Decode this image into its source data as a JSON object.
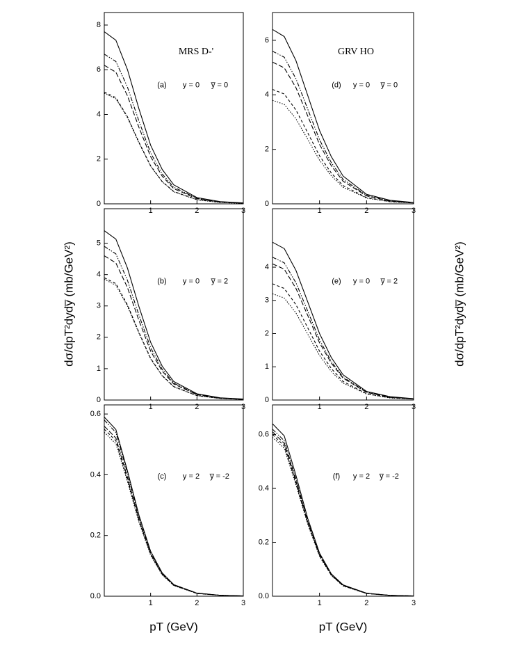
{
  "chart_data": [
    {
      "type": "line",
      "title": "MRS D-'",
      "panel_label": "(a)",
      "condition_y": "y = 0",
      "condition_ybar": "y̅ = 0",
      "x": [
        0,
        0.25,
        0.5,
        0.75,
        1,
        1.25,
        1.5,
        2,
        2.5,
        3
      ],
      "xlim": [
        0,
        3
      ],
      "xticks": [
        1,
        2,
        3
      ],
      "ylim": [
        0,
        8.56
      ],
      "yticks": [
        0,
        2,
        4,
        6,
        8
      ],
      "series": [
        {
          "color": "#000000",
          "dash": "solid",
          "values": [
            7.7,
            7.32,
            6.01,
            4.24,
            2.62,
            1.54,
            0.85,
            0.28,
            0.1,
            0.04
          ]
        },
        {
          "color": "#000000",
          "dash": "dashdot",
          "values": [
            6.7,
            6.37,
            5.23,
            3.69,
            2.28,
            1.34,
            0.74,
            0.25,
            0.09,
            0.03
          ]
        },
        {
          "color": "#000000",
          "dash": "dash",
          "values": [
            6.2,
            5.89,
            4.84,
            3.41,
            2.11,
            1.24,
            0.68,
            0.23,
            0.08,
            0.03
          ]
        },
        {
          "color": "#000000",
          "dash": "shortdash",
          "values": [
            5.0,
            4.75,
            3.9,
            2.75,
            1.7,
            1.0,
            0.55,
            0.19,
            0.07,
            0.03
          ]
        },
        {
          "color": "#000000",
          "dash": "dot",
          "values": [
            4.95,
            4.7,
            3.86,
            2.72,
            1.68,
            0.99,
            0.54,
            0.18,
            0.06,
            0.02
          ]
        }
      ]
    },
    {
      "type": "line",
      "panel_label": "(b)",
      "condition_y": "y = 0",
      "condition_ybar": "y̅ = 2",
      "ylabel": "dσ/dpT²dydy̅ (mb/GeV²)",
      "x": [
        0,
        0.25,
        0.5,
        0.75,
        1,
        1.25,
        1.5,
        2,
        2.5,
        3
      ],
      "xlim": [
        0,
        3
      ],
      "xticks": [
        1,
        2,
        3
      ],
      "ylim": [
        0,
        6.1
      ],
      "yticks": [
        0,
        1,
        2,
        3,
        4,
        5
      ],
      "series": [
        {
          "color": "#000000",
          "dash": "solid",
          "values": [
            5.4,
            5.13,
            4.21,
            2.97,
            1.84,
            1.08,
            0.59,
            0.2,
            0.07,
            0.03
          ]
        },
        {
          "color": "#000000",
          "dash": "dashdot",
          "values": [
            4.9,
            4.66,
            3.82,
            2.7,
            1.67,
            0.98,
            0.54,
            0.18,
            0.06,
            0.02
          ]
        },
        {
          "color": "#000000",
          "dash": "dash",
          "values": [
            4.6,
            4.37,
            3.59,
            2.53,
            1.56,
            0.92,
            0.51,
            0.17,
            0.06,
            0.02
          ]
        },
        {
          "color": "#000000",
          "dash": "shortdash",
          "values": [
            3.9,
            3.71,
            3.04,
            2.15,
            1.33,
            0.78,
            0.43,
            0.14,
            0.05,
            0.02
          ]
        },
        {
          "color": "#000000",
          "dash": "dot",
          "values": [
            3.85,
            3.66,
            3.0,
            2.12,
            1.31,
            0.77,
            0.42,
            0.14,
            0.05,
            0.02
          ]
        }
      ]
    },
    {
      "type": "line",
      "panel_label": "(c)",
      "condition_y": "y = 2",
      "condition_ybar": "y̅ = -2",
      "xlabel": "pT (GeV)",
      "x": [
        0,
        0.25,
        0.5,
        0.75,
        1,
        1.25,
        1.5,
        2,
        2.5,
        3
      ],
      "xlim": [
        0,
        3
      ],
      "xticks": [
        1,
        2,
        3
      ],
      "ylim": [
        0,
        0.63
      ],
      "yticks": [
        {
          "value": 0,
          "label": "0.0"
        },
        0.2,
        0.4,
        0.6
      ],
      "series": [
        {
          "color": "#000000",
          "dash": "solid",
          "values": [
            0.59,
            0.549,
            0.413,
            0.266,
            0.148,
            0.077,
            0.038,
            0.01,
            0.003,
            0.001
          ]
        },
        {
          "color": "#000000",
          "dash": "dashdot",
          "values": [
            0.58,
            0.539,
            0.406,
            0.261,
            0.145,
            0.075,
            0.038,
            0.01,
            0.003,
            0.001
          ]
        },
        {
          "color": "#000000",
          "dash": "dash",
          "values": [
            0.56,
            0.521,
            0.392,
            0.252,
            0.14,
            0.073,
            0.036,
            0.01,
            0.003,
            0.001
          ]
        },
        {
          "color": "#000000",
          "dash": "shortdash",
          "values": [
            0.55,
            0.512,
            0.385,
            0.248,
            0.138,
            0.072,
            0.036,
            0.009,
            0.003,
            0.001
          ]
        },
        {
          "color": "#000000",
          "dash": "dot",
          "values": [
            0.54,
            0.502,
            0.378,
            0.243,
            0.135,
            0.07,
            0.035,
            0.009,
            0.003,
            0.001
          ]
        }
      ]
    },
    {
      "type": "line",
      "title": "GRV HO",
      "panel_label": "(d)",
      "condition_y": "y = 0",
      "condition_ybar": "y̅ = 0",
      "x": [
        0,
        0.25,
        0.5,
        0.75,
        1,
        1.25,
        1.5,
        2,
        2.5,
        3
      ],
      "xlim": [
        0,
        3
      ],
      "xticks": [
        1,
        2,
        3
      ],
      "ylim": [
        0,
        7.02
      ],
      "yticks": [
        0,
        2,
        4,
        6
      ],
      "series": [
        {
          "color": "#000000",
          "dash": "solid",
          "values": [
            6.4,
            6.14,
            5.25,
            3.97,
            2.69,
            1.73,
            1.02,
            0.35,
            0.13,
            0.05
          ]
        },
        {
          "color": "#000000",
          "dash": "dashdot",
          "values": [
            5.6,
            5.38,
            4.59,
            3.47,
            2.35,
            1.51,
            0.9,
            0.31,
            0.11,
            0.04
          ]
        },
        {
          "color": "#000000",
          "dash": "dash",
          "values": [
            5.2,
            4.99,
            4.26,
            3.22,
            2.18,
            1.4,
            0.83,
            0.29,
            0.1,
            0.04
          ]
        },
        {
          "color": "#000000",
          "dash": "shortdash",
          "values": [
            4.2,
            4.03,
            3.44,
            2.6,
            1.76,
            1.13,
            0.67,
            0.23,
            0.08,
            0.03
          ]
        },
        {
          "color": "#000000",
          "dash": "dot",
          "values": [
            3.8,
            3.65,
            3.12,
            2.36,
            1.6,
            1.03,
            0.61,
            0.21,
            0.08,
            0.03
          ]
        }
      ]
    },
    {
      "type": "line",
      "panel_label": "(e)",
      "condition_y": "y = 0",
      "condition_ybar": "y̅ = 2",
      "ylabel": "dσ/dpT²dydy̅ (mb/GeV²)",
      "x": [
        0,
        0.25,
        0.5,
        0.75,
        1,
        1.25,
        1.5,
        2,
        2.5,
        3
      ],
      "xlim": [
        0,
        3
      ],
      "xticks": [
        1,
        2,
        3
      ],
      "ylim": [
        0,
        5.76
      ],
      "yticks": [
        0,
        1,
        2,
        3,
        4
      ],
      "series": [
        {
          "color": "#000000",
          "dash": "solid",
          "values": [
            4.75,
            4.56,
            3.9,
            2.95,
            2.0,
            1.28,
            0.76,
            0.26,
            0.1,
            0.04
          ]
        },
        {
          "color": "#000000",
          "dash": "dashdot",
          "values": [
            4.3,
            4.13,
            3.53,
            2.67,
            1.81,
            1.16,
            0.69,
            0.24,
            0.09,
            0.03
          ]
        },
        {
          "color": "#000000",
          "dash": "dash",
          "values": [
            4.1,
            3.94,
            3.36,
            2.54,
            1.72,
            1.11,
            0.66,
            0.23,
            0.08,
            0.03
          ]
        },
        {
          "color": "#000000",
          "dash": "shortdash",
          "values": [
            3.5,
            3.36,
            2.87,
            2.17,
            1.47,
            0.95,
            0.56,
            0.19,
            0.07,
            0.03
          ]
        },
        {
          "color": "#000000",
          "dash": "dot",
          "values": [
            3.2,
            3.07,
            2.62,
            1.98,
            1.34,
            0.86,
            0.51,
            0.18,
            0.06,
            0.03
          ]
        }
      ]
    },
    {
      "type": "line",
      "panel_label": "(f)",
      "condition_y": "y = 2",
      "condition_ybar": "y̅ = -2",
      "xlabel": "pT (GeV)",
      "x": [
        0,
        0.25,
        0.5,
        0.75,
        1,
        1.25,
        1.5,
        2,
        2.5,
        3
      ],
      "xlim": [
        0,
        3
      ],
      "xticks": [
        1,
        2,
        3
      ],
      "ylim": [
        0,
        0.71
      ],
      "yticks": [
        {
          "value": 0,
          "label": "0.0"
        },
        0.2,
        0.4,
        0.6
      ],
      "series": [
        {
          "color": "#000000",
          "dash": "solid",
          "values": [
            0.64,
            0.595,
            0.448,
            0.288,
            0.16,
            0.083,
            0.042,
            0.011,
            0.003,
            0.001
          ]
        },
        {
          "color": "#000000",
          "dash": "dashdot",
          "values": [
            0.62,
            0.577,
            0.434,
            0.279,
            0.155,
            0.081,
            0.04,
            0.011,
            0.003,
            0.001
          ]
        },
        {
          "color": "#000000",
          "dash": "dash",
          "values": [
            0.61,
            0.567,
            0.427,
            0.275,
            0.153,
            0.079,
            0.04,
            0.01,
            0.003,
            0.001
          ]
        },
        {
          "color": "#000000",
          "dash": "shortdash",
          "values": [
            0.6,
            0.558,
            0.42,
            0.27,
            0.15,
            0.078,
            0.039,
            0.01,
            0.003,
            0.001
          ]
        },
        {
          "color": "#000000",
          "dash": "dot",
          "values": [
            0.59,
            0.549,
            0.413,
            0.266,
            0.148,
            0.077,
            0.038,
            0.01,
            0.003,
            0.001
          ]
        }
      ]
    }
  ]
}
